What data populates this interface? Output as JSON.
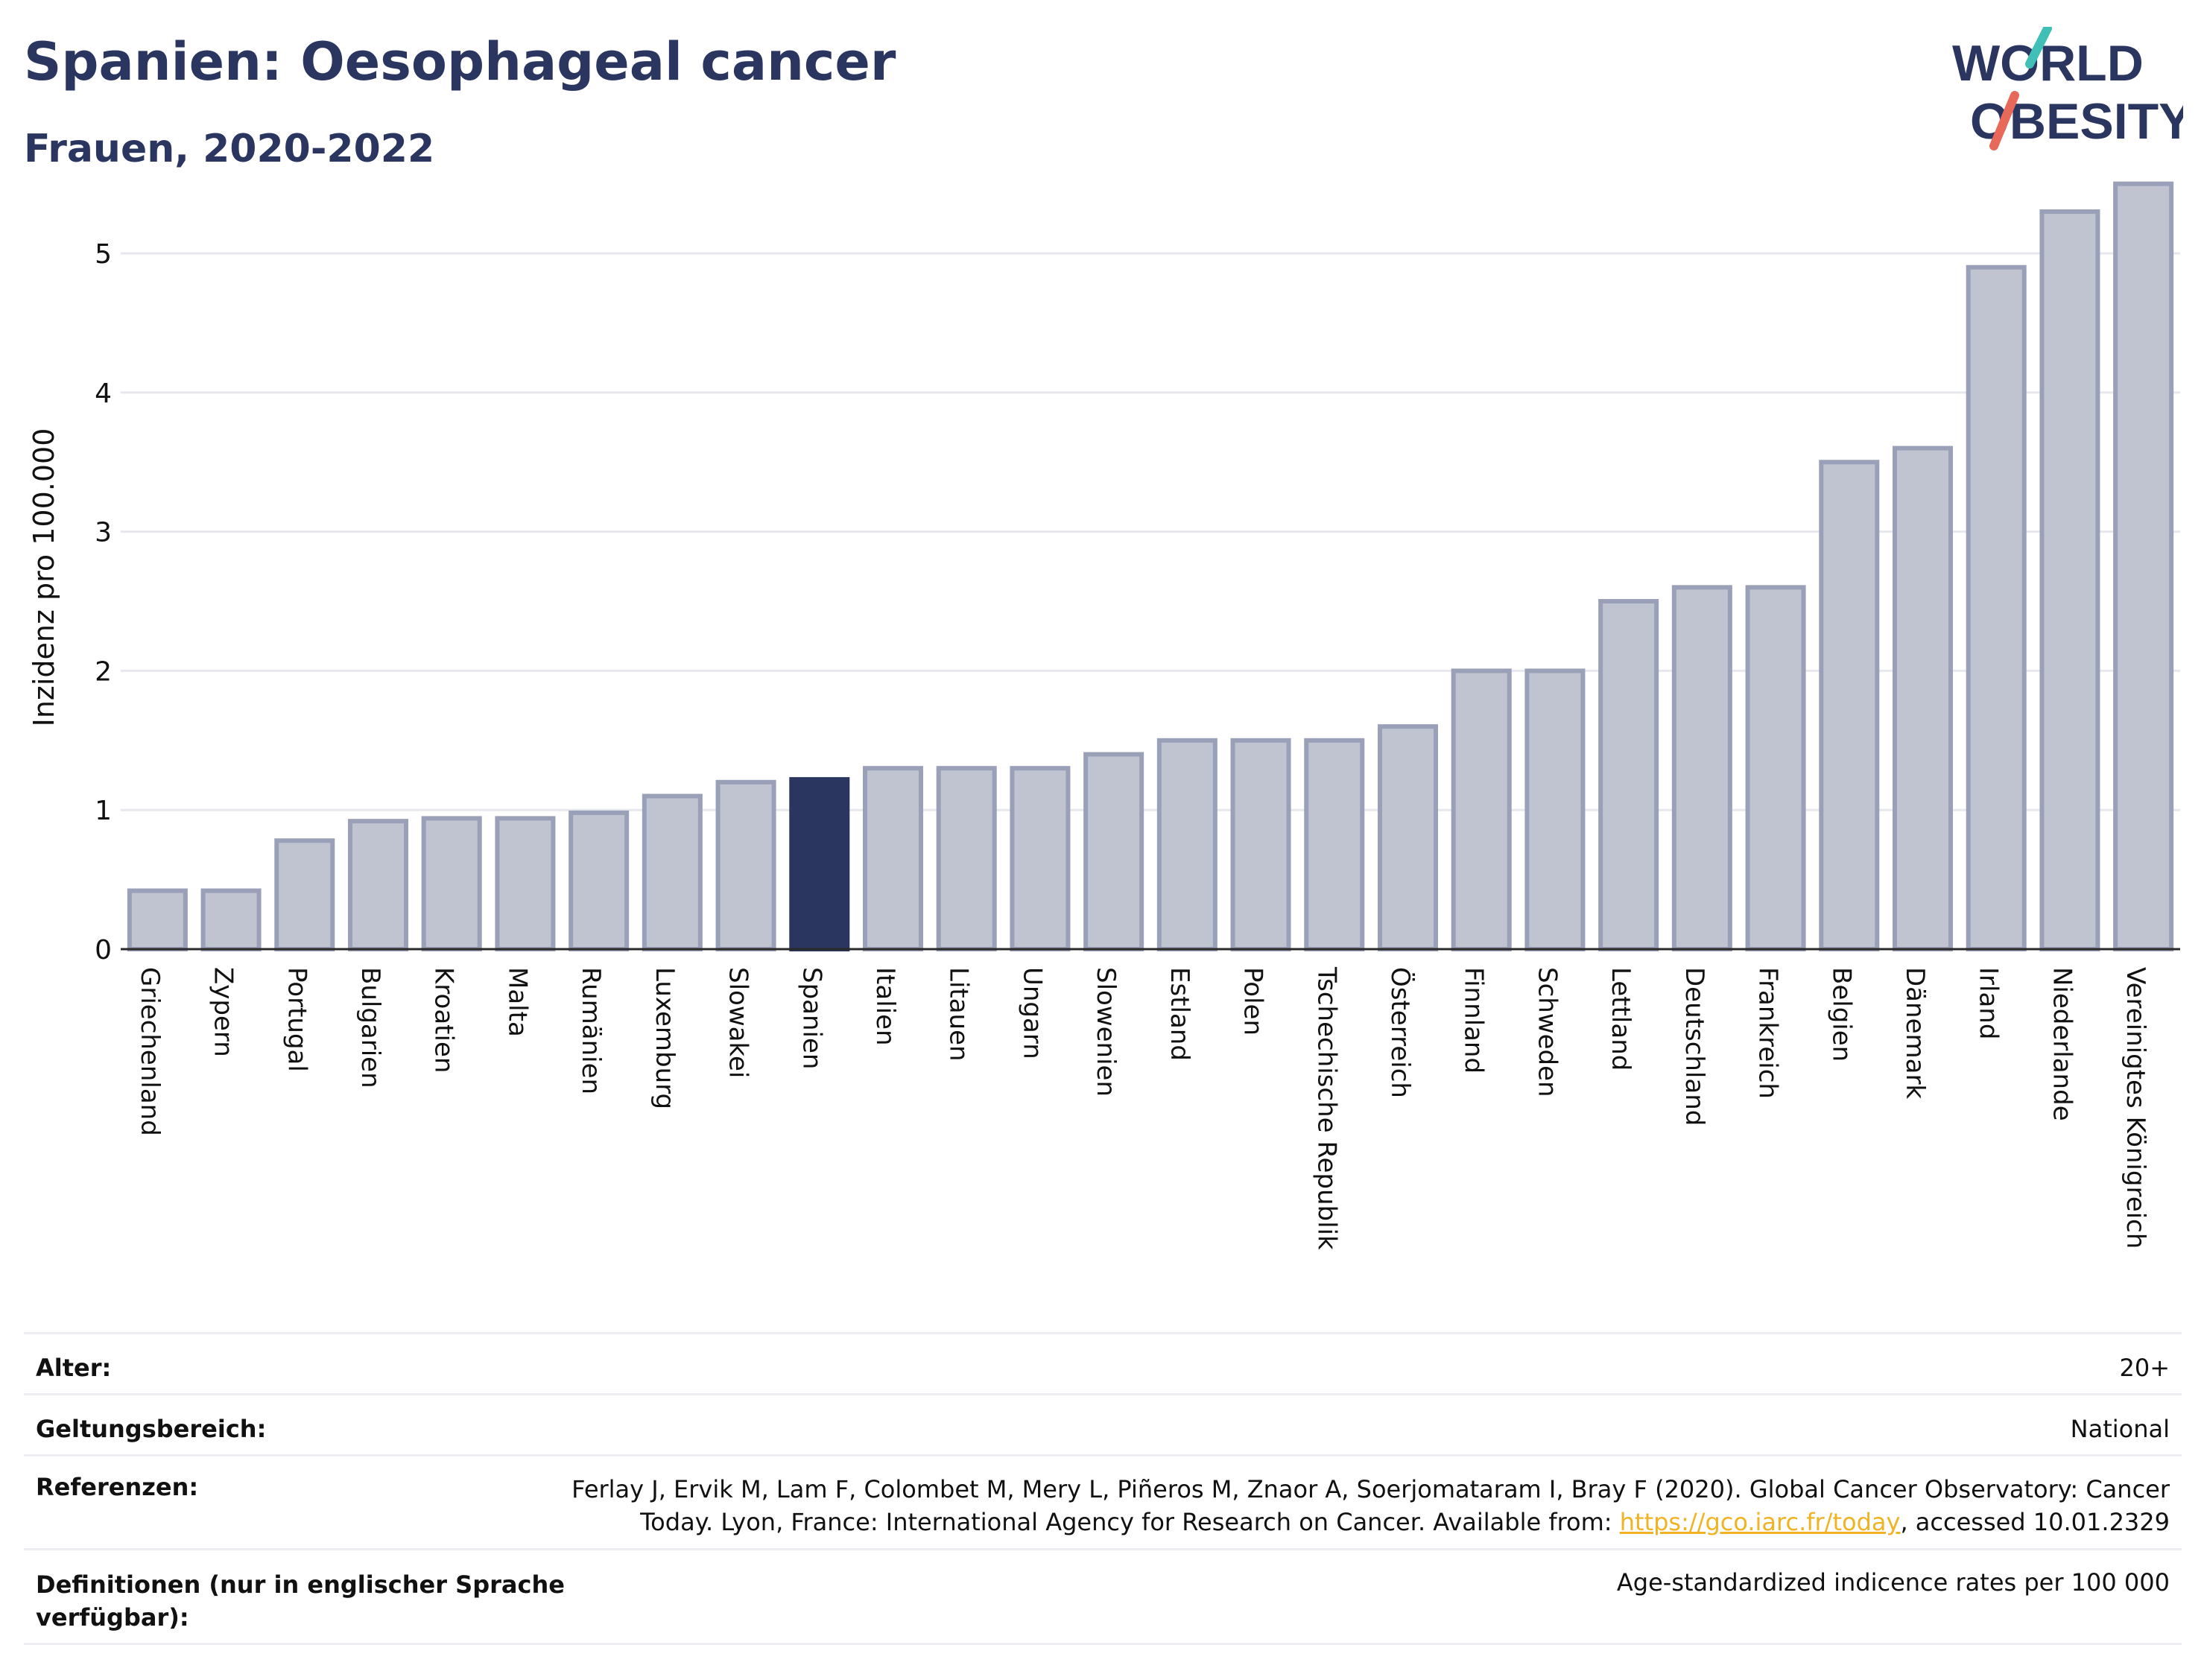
{
  "header": {
    "title": "Spanien: Oesophageal cancer",
    "subtitle": "Frauen, 2020-2022"
  },
  "logo": {
    "line1": "WORLD",
    "line2": "OBESITY"
  },
  "chart_data": {
    "type": "bar",
    "ylabel": "Inzidenz pro 100.000",
    "ylim": [
      0,
      5.6
    ],
    "yticks": [
      0,
      1,
      2,
      3,
      4,
      5
    ],
    "grid": true,
    "highlight": "Spanien",
    "colors": {
      "bar": "#c0c3d0",
      "bar_border": "#9aa0b8",
      "highlight": "#2a3560"
    },
    "categories": [
      "Griechenland",
      "Zypern",
      "Portugal",
      "Bulgarien",
      "Kroatien",
      "Malta",
      "Rumänien",
      "Luxemburg",
      "Slowakei",
      "Spanien",
      "Italien",
      "Litauen",
      "Ungarn",
      "Slowenien",
      "Estland",
      "Polen",
      "Tschechische Republik",
      "Österreich",
      "Finnland",
      "Schweden",
      "Lettland",
      "Deutschland",
      "Frankreich",
      "Belgien",
      "Dänemark",
      "Irland",
      "Niederlande",
      "Vereinigtes Königreich"
    ],
    "values": [
      0.42,
      0.42,
      0.78,
      0.92,
      0.94,
      0.94,
      0.98,
      1.1,
      1.2,
      1.22,
      1.3,
      1.3,
      1.3,
      1.4,
      1.5,
      1.5,
      1.5,
      1.6,
      2.0,
      2.0,
      2.5,
      2.6,
      2.6,
      3.5,
      3.6,
      4.9,
      5.3,
      5.5
    ]
  },
  "meta": {
    "age_label": "Alter:",
    "age_value": "20+",
    "scope_label": "Geltungsbereich:",
    "scope_value": "National",
    "ref_label": "Referenzen:",
    "ref_line1": "Ferlay J, Ervik M, Lam F, Colombet M, Mery L, Piñeros M, Znaor A, Soerjomataram I, Bray F (2020). Global Cancer Observatory: Cancer",
    "ref_line2_pre": "Today. Lyon, France: International Agency for Research on Cancer. Available from: ",
    "ref_link": "https://gco.iarc.fr/today",
    "ref_line2_post": ", accessed 10.01.2329",
    "def_label_1": "Definitionen (nur in englischer Sprache",
    "def_label_2": "verfügbar):",
    "def_value": "Age-standardized indicence rates per 100 000"
  }
}
